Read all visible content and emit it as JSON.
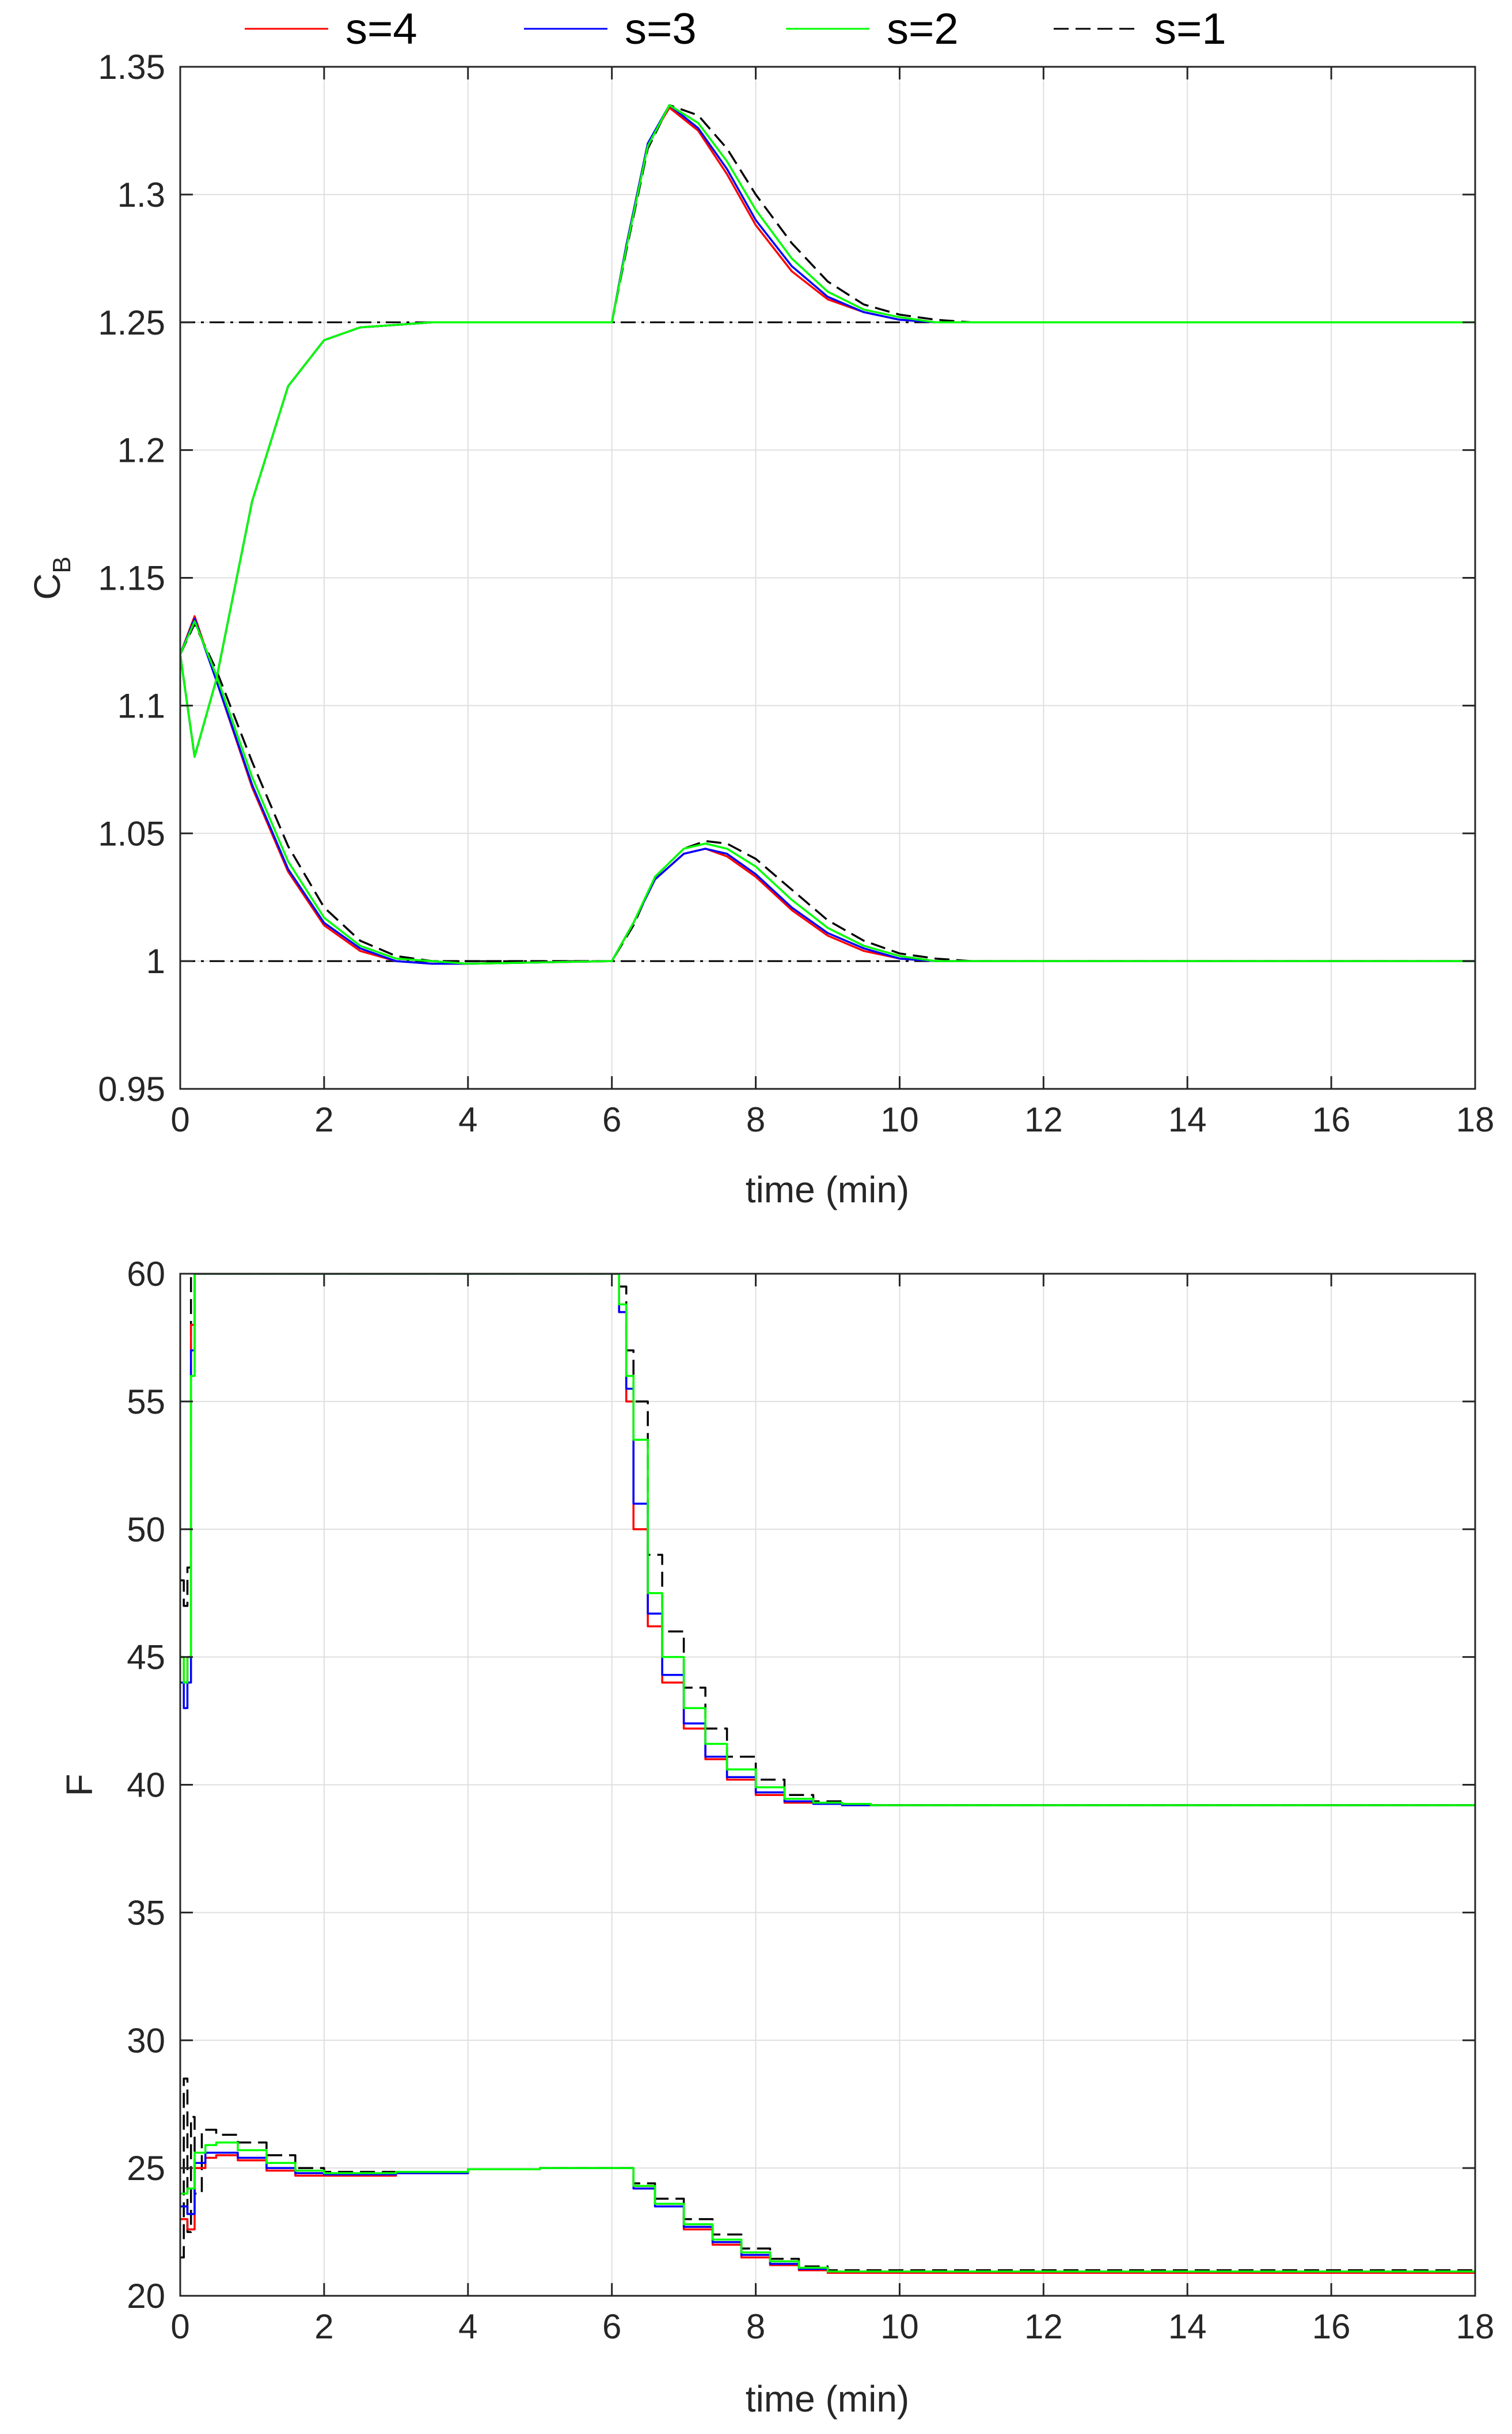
{
  "legend": {
    "entries": [
      {
        "label": "s=4",
        "color": "#ff0000",
        "dash": "solid"
      },
      {
        "label": "s=3",
        "color": "#0000ff",
        "dash": "solid"
      },
      {
        "label": "s=2",
        "color": "#00ff00",
        "dash": "solid"
      },
      {
        "label": "s=1",
        "color": "#000000",
        "dash": "dashed"
      }
    ],
    "placement": "top-center"
  },
  "chart_data": [
    {
      "type": "line",
      "xlabel": "time (min)",
      "ylabel": "C",
      "ylabel_subscript": "B",
      "xlim": [
        0,
        18
      ],
      "ylim": [
        0.95,
        1.35
      ],
      "xticks": [
        "0",
        "2",
        "4",
        "6",
        "8",
        "10",
        "12",
        "14",
        "16",
        "18"
      ],
      "yticks": [
        "0.95",
        "1",
        "1.05",
        "1.1",
        "1.15",
        "1.2",
        "1.25",
        "1.3",
        "1.35"
      ],
      "grid": true,
      "references": [
        {
          "y": 1.25,
          "style": "dash-dot",
          "color": "#000000"
        },
        {
          "y": 1.0,
          "style": "dash-dot",
          "color": "#000000"
        }
      ],
      "series": [
        {
          "name": "s=4",
          "color": "#ff0000",
          "trajectory": "high",
          "x": [
            0,
            0.2,
            0.5,
            1.0,
            1.5,
            2.0,
            2.5,
            3.0,
            3.5,
            4,
            6,
            6.2,
            6.5,
            6.8,
            7.2,
            7.6,
            8,
            8.5,
            9,
            9.5,
            10,
            10.5,
            11,
            18
          ],
          "y": [
            1.12,
            1.08,
            1.11,
            1.18,
            1.225,
            1.243,
            1.248,
            1.249,
            1.25,
            1.25,
            1.25,
            1.28,
            1.32,
            1.334,
            1.325,
            1.308,
            1.288,
            1.27,
            1.259,
            1.254,
            1.251,
            1.25,
            1.25,
            1.25
          ]
        },
        {
          "name": "s=4",
          "color": "#ff0000",
          "trajectory": "low",
          "x": [
            0,
            0.2,
            0.5,
            1.0,
            1.5,
            2.0,
            2.5,
            3.0,
            3.5,
            4,
            6,
            6.3,
            6.6,
            7.0,
            7.3,
            7.6,
            8,
            8.5,
            9,
            9.5,
            10,
            10.5,
            11,
            18
          ],
          "y": [
            1.12,
            1.135,
            1.11,
            1.068,
            1.035,
            1.014,
            1.004,
            1.0,
            0.999,
            0.999,
            1.0,
            1.015,
            1.032,
            1.042,
            1.044,
            1.041,
            1.033,
            1.02,
            1.01,
            1.004,
            1.001,
            1.0,
            1.0,
            1.0
          ]
        },
        {
          "name": "s=3",
          "color": "#0000ff",
          "trajectory": "high",
          "x": [
            0,
            0.2,
            0.5,
            1.0,
            1.5,
            2.0,
            2.5,
            3.0,
            3.5,
            4,
            6,
            6.2,
            6.5,
            6.8,
            7.2,
            7.6,
            8,
            8.5,
            9,
            9.5,
            10,
            10.5,
            11,
            18
          ],
          "y": [
            1.12,
            1.08,
            1.11,
            1.18,
            1.225,
            1.243,
            1.248,
            1.249,
            1.25,
            1.25,
            1.25,
            1.28,
            1.32,
            1.335,
            1.326,
            1.31,
            1.29,
            1.272,
            1.26,
            1.254,
            1.251,
            1.25,
            1.25,
            1.25
          ]
        },
        {
          "name": "s=3",
          "color": "#0000ff",
          "trajectory": "low",
          "x": [
            0,
            0.2,
            0.5,
            1.0,
            1.5,
            2.0,
            2.5,
            3.0,
            3.5,
            4,
            6,
            6.3,
            6.6,
            7.0,
            7.3,
            7.6,
            8,
            8.5,
            9,
            9.5,
            10,
            10.5,
            11,
            18
          ],
          "y": [
            1.12,
            1.134,
            1.11,
            1.069,
            1.036,
            1.015,
            1.005,
            1.0,
            0.999,
            0.999,
            1.0,
            1.015,
            1.032,
            1.042,
            1.044,
            1.042,
            1.034,
            1.021,
            1.011,
            1.005,
            1.001,
            1.0,
            1.0,
            1.0
          ]
        },
        {
          "name": "s=2",
          "color": "#00ff00",
          "trajectory": "high",
          "x": [
            0,
            0.2,
            0.5,
            1.0,
            1.5,
            2.0,
            2.5,
            3.0,
            3.5,
            4,
            6,
            6.2,
            6.5,
            6.8,
            7.2,
            7.6,
            8,
            8.5,
            9,
            9.5,
            10,
            10.5,
            11,
            18
          ],
          "y": [
            1.12,
            1.08,
            1.11,
            1.18,
            1.225,
            1.243,
            1.248,
            1.249,
            1.25,
            1.25,
            1.25,
            1.279,
            1.319,
            1.335,
            1.328,
            1.313,
            1.294,
            1.275,
            1.262,
            1.255,
            1.252,
            1.25,
            1.25,
            1.25
          ]
        },
        {
          "name": "s=2",
          "color": "#00ff00",
          "trajectory": "low",
          "x": [
            0,
            0.2,
            0.5,
            1.0,
            1.5,
            2.0,
            2.5,
            3.0,
            3.5,
            4,
            6,
            6.3,
            6.6,
            7.0,
            7.3,
            7.6,
            8,
            8.5,
            9,
            9.5,
            10,
            10.5,
            11,
            18
          ],
          "y": [
            1.12,
            1.133,
            1.112,
            1.072,
            1.039,
            1.017,
            1.006,
            1.001,
            1.0,
            0.999,
            1.0,
            1.015,
            1.033,
            1.044,
            1.046,
            1.044,
            1.037,
            1.024,
            1.013,
            1.006,
            1.002,
            1.0,
            1.0,
            1.0
          ]
        },
        {
          "name": "s=1",
          "color": "#000000",
          "trajectory": "high",
          "x": [
            0,
            0.2,
            0.5,
            1.0,
            1.5,
            2.0,
            2.5,
            3.0,
            3.5,
            4,
            6,
            6.2,
            6.5,
            6.8,
            7.2,
            7.6,
            8,
            8.5,
            9,
            9.5,
            10,
            10.5,
            11,
            18
          ],
          "y": [
            1.12,
            1.08,
            1.11,
            1.18,
            1.225,
            1.243,
            1.248,
            1.249,
            1.25,
            1.25,
            1.25,
            1.278,
            1.318,
            1.335,
            1.331,
            1.318,
            1.3,
            1.281,
            1.266,
            1.257,
            1.253,
            1.251,
            1.25,
            1.25
          ]
        },
        {
          "name": "s=1",
          "color": "#000000",
          "trajectory": "low",
          "x": [
            0,
            0.2,
            0.5,
            1.0,
            1.5,
            2.0,
            2.5,
            3.0,
            3.5,
            4,
            6,
            6.3,
            6.6,
            7.0,
            7.3,
            7.6,
            8,
            8.5,
            9,
            9.5,
            10,
            10.5,
            11,
            18
          ],
          "y": [
            1.12,
            1.132,
            1.114,
            1.078,
            1.045,
            1.021,
            1.008,
            1.002,
            1.0,
            1.0,
            1.0,
            1.014,
            1.033,
            1.044,
            1.047,
            1.046,
            1.04,
            1.028,
            1.016,
            1.008,
            1.003,
            1.001,
            1.0,
            1.0
          ]
        }
      ]
    },
    {
      "type": "line",
      "xlabel": "time (min)",
      "ylabel": "F",
      "xlim": [
        0,
        18
      ],
      "ylim": [
        20,
        60
      ],
      "xticks": [
        "0",
        "2",
        "4",
        "6",
        "8",
        "10",
        "12",
        "14",
        "16",
        "18"
      ],
      "yticks": [
        "20",
        "25",
        "30",
        "35",
        "40",
        "45",
        "50",
        "55",
        "60"
      ],
      "grid": true,
      "series": [
        {
          "name": "s=4",
          "color": "#ff0000",
          "trajectory": "high",
          "x": [
            0,
            0.05,
            0.1,
            0.15,
            0.2,
            0.25,
            0.3,
            5.9,
            6.0,
            6.1,
            6.2,
            6.3,
            6.5,
            6.7,
            7.0,
            7.3,
            7.6,
            8.0,
            8.4,
            8.8,
            9.2,
            9.6,
            18
          ],
          "y": [
            45,
            44,
            45,
            58,
            60,
            60,
            60,
            60,
            60,
            58.5,
            55,
            50,
            46.2,
            44,
            42.2,
            41,
            40.2,
            39.6,
            39.3,
            39.25,
            39.2,
            39.2,
            39.2
          ]
        },
        {
          "name": "s=4",
          "color": "#ff0000",
          "trajectory": "low",
          "x": [
            0,
            0.1,
            0.2,
            0.35,
            0.5,
            0.8,
            1.2,
            1.6,
            2,
            3,
            4,
            5,
            6,
            6.3,
            6.6,
            7.0,
            7.4,
            7.8,
            8.2,
            8.6,
            9,
            18
          ],
          "y": [
            23,
            22.6,
            25.0,
            25.4,
            25.5,
            25.3,
            24.9,
            24.7,
            24.7,
            24.8,
            24.95,
            25,
            25,
            24.2,
            23.5,
            22.6,
            22.0,
            21.5,
            21.2,
            21.0,
            20.9,
            20.9
          ]
        },
        {
          "name": "s=3",
          "color": "#0000ff",
          "trajectory": "high",
          "x": [
            0,
            0.05,
            0.1,
            0.15,
            0.2,
            0.25,
            0.3,
            5.9,
            6.0,
            6.1,
            6.2,
            6.3,
            6.5,
            6.7,
            7.0,
            7.3,
            7.6,
            8.0,
            8.4,
            8.8,
            9.2,
            9.6,
            18
          ],
          "y": [
            44,
            43,
            44,
            57,
            60,
            60,
            60,
            60,
            60,
            58.5,
            55.5,
            51,
            46.7,
            44.3,
            42.4,
            41.1,
            40.3,
            39.7,
            39.35,
            39.25,
            39.2,
            39.2,
            39.2
          ]
        },
        {
          "name": "s=3",
          "color": "#0000ff",
          "trajectory": "low",
          "x": [
            0,
            0.1,
            0.2,
            0.35,
            0.5,
            0.8,
            1.2,
            1.6,
            2,
            3,
            4,
            5,
            6,
            6.3,
            6.6,
            7.0,
            7.4,
            7.8,
            8.2,
            8.6,
            9,
            18
          ],
          "y": [
            23.5,
            23.2,
            25.2,
            25.6,
            25.6,
            25.4,
            25.0,
            24.8,
            24.75,
            24.8,
            24.95,
            25,
            25,
            24.2,
            23.5,
            22.7,
            22.1,
            21.6,
            21.25,
            21.05,
            20.95,
            20.9
          ]
        },
        {
          "name": "s=2",
          "color": "#00ff00",
          "trajectory": "high",
          "x": [
            0,
            0.05,
            0.1,
            0.15,
            0.2,
            0.25,
            0.3,
            5.9,
            6.0,
            6.1,
            6.2,
            6.3,
            6.5,
            6.7,
            7.0,
            7.3,
            7.6,
            8.0,
            8.4,
            8.8,
            9.2,
            9.6,
            18
          ],
          "y": [
            45,
            44,
            45,
            56,
            60,
            60,
            60,
            60,
            60,
            58.8,
            56,
            53.5,
            47.5,
            45,
            43,
            41.6,
            40.6,
            39.9,
            39.45,
            39.3,
            39.25,
            39.2,
            39.2
          ]
        },
        {
          "name": "s=2",
          "color": "#00ff00",
          "trajectory": "low",
          "x": [
            0,
            0.1,
            0.2,
            0.35,
            0.5,
            0.8,
            1.2,
            1.6,
            2,
            3,
            4,
            5,
            6,
            6.3,
            6.6,
            7.0,
            7.4,
            7.8,
            8.2,
            8.6,
            9,
            18
          ],
          "y": [
            24,
            24.2,
            25.6,
            25.9,
            26.0,
            25.7,
            25.2,
            24.9,
            24.8,
            24.85,
            24.95,
            25,
            25,
            24.3,
            23.6,
            22.8,
            22.2,
            21.7,
            21.35,
            21.1,
            20.95,
            20.9
          ]
        },
        {
          "name": "s=1",
          "color": "#000000",
          "trajectory": "high",
          "x": [
            0,
            0.05,
            0.1,
            0.15,
            0.2,
            0.25,
            0.3,
            5.9,
            6.0,
            6.1,
            6.2,
            6.3,
            6.5,
            6.7,
            7.0,
            7.3,
            7.6,
            8.0,
            8.4,
            8.8,
            9.2,
            9.6,
            18
          ],
          "y": [
            48,
            47,
            48.5,
            60,
            60,
            60,
            60,
            60,
            60,
            59.5,
            57,
            55,
            49,
            46,
            43.8,
            42.2,
            41.1,
            40.2,
            39.6,
            39.35,
            39.25,
            39.2,
            39.2
          ]
        },
        {
          "name": "s=1",
          "color": "#000000",
          "trajectory": "low",
          "x": [
            0,
            0.05,
            0.1,
            0.15,
            0.2,
            0.3,
            0.5,
            0.8,
            1.2,
            1.6,
            2,
            3,
            4,
            5,
            6,
            6.3,
            6.6,
            7.0,
            7.4,
            7.8,
            8.2,
            8.6,
            9,
            18
          ],
          "y": [
            21.5,
            28.5,
            22.5,
            27.0,
            24.0,
            26.5,
            26.3,
            26.0,
            25.5,
            25.0,
            24.85,
            24.85,
            24.95,
            25,
            25,
            24.4,
            23.8,
            23.0,
            22.4,
            21.85,
            21.45,
            21.15,
            21.0,
            20.9
          ]
        }
      ]
    }
  ]
}
